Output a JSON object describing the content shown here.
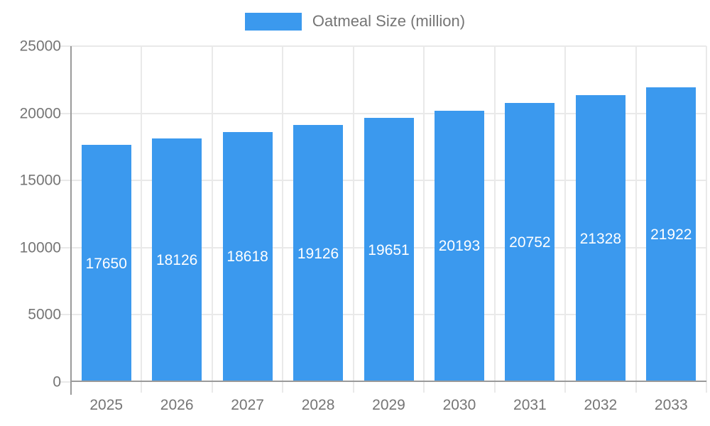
{
  "chart_data": {
    "type": "bar",
    "title": "Oatmeal Size (million)",
    "categories": [
      "2025",
      "2026",
      "2027",
      "2028",
      "2029",
      "2030",
      "2031",
      "2032",
      "2033"
    ],
    "values": [
      17650,
      18126,
      18618,
      19126,
      19651,
      20193,
      20752,
      21328,
      21922
    ],
    "series": [
      {
        "name": "Oatmeal Size (million)",
        "values": [
          17650,
          18126,
          18618,
          19126,
          19651,
          20193,
          20752,
          21328,
          21922
        ]
      }
    ],
    "xlabel": "",
    "ylabel": "",
    "ylim": [
      0,
      25000
    ],
    "yticks": [
      0,
      5000,
      10000,
      15000,
      20000,
      25000
    ],
    "grid": true,
    "legend_position": "top-center",
    "bar_value_labels_visible": true,
    "colors": {
      "bar": "#3b99ee",
      "grid": "#e9e9e9",
      "axis_border": "#9a9a9a",
      "tick_text": "#757575",
      "legend_text": "#757575",
      "bar_value_label": "#ffffff",
      "background": "#ffffff"
    }
  }
}
